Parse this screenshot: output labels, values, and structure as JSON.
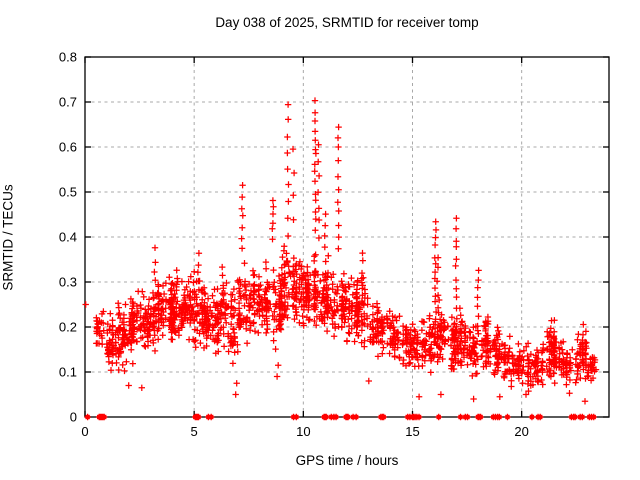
{
  "title": "Day 038 of 2025, SRMTID for receiver tomp",
  "chart_data": {
    "type": "scatter",
    "title": "Day 038 of 2025, SRMTID for receiver tomp",
    "xlabel": "GPS time / hours",
    "ylabel": "SRMTID / TECUs",
    "xlim": [
      0,
      24
    ],
    "ylim": [
      0,
      0.8
    ],
    "x_ticks": [
      0,
      5,
      10,
      15,
      20
    ],
    "y_ticks": [
      0,
      0.1,
      0.2,
      0.3,
      0.4,
      0.5,
      0.6,
      0.7,
      0.8
    ],
    "grid": "dashed",
    "legend": "none",
    "marker": "plus",
    "colors": {
      "marker": "#ff0000",
      "grid": "#a8a8a8",
      "axis": "#000000",
      "text": "#000000",
      "bg": "#ffffff"
    },
    "band_profile_bins": [
      [
        0.5,
        1.0,
        28,
        0.12,
        0.27
      ],
      [
        1.0,
        1.5,
        45,
        0.09,
        0.25
      ],
      [
        1.5,
        2.0,
        50,
        0.08,
        0.28
      ],
      [
        2.0,
        2.5,
        55,
        0.1,
        0.31
      ],
      [
        2.5,
        3.0,
        50,
        0.12,
        0.3
      ],
      [
        3.0,
        3.5,
        52,
        0.13,
        0.34
      ],
      [
        3.5,
        4.0,
        55,
        0.14,
        0.33
      ],
      [
        4.0,
        4.5,
        55,
        0.14,
        0.34
      ],
      [
        4.5,
        5.0,
        50,
        0.15,
        0.33
      ],
      [
        5.0,
        5.5,
        55,
        0.13,
        0.35
      ],
      [
        5.5,
        6.0,
        48,
        0.12,
        0.31
      ],
      [
        6.0,
        6.5,
        52,
        0.13,
        0.34
      ],
      [
        6.5,
        7.0,
        42,
        0.08,
        0.33
      ],
      [
        7.0,
        7.5,
        45,
        0.13,
        0.36
      ],
      [
        7.5,
        8.0,
        48,
        0.15,
        0.37
      ],
      [
        8.0,
        8.5,
        48,
        0.14,
        0.35
      ],
      [
        8.5,
        9.0,
        48,
        0.11,
        0.37
      ],
      [
        9.0,
        9.5,
        52,
        0.16,
        0.4
      ],
      [
        9.5,
        10.0,
        55,
        0.17,
        0.4
      ],
      [
        10.0,
        10.5,
        58,
        0.18,
        0.38
      ],
      [
        10.5,
        11.0,
        52,
        0.16,
        0.38
      ],
      [
        11.0,
        11.5,
        52,
        0.15,
        0.37
      ],
      [
        11.5,
        12.0,
        48,
        0.15,
        0.35
      ],
      [
        12.0,
        12.5,
        48,
        0.14,
        0.34
      ],
      [
        12.5,
        13.0,
        45,
        0.13,
        0.33
      ],
      [
        13.0,
        13.5,
        38,
        0.11,
        0.3
      ],
      [
        13.5,
        14.0,
        34,
        0.1,
        0.28
      ],
      [
        14.0,
        14.5,
        40,
        0.1,
        0.26
      ],
      [
        14.5,
        15.0,
        40,
        0.09,
        0.24
      ],
      [
        15.0,
        15.5,
        40,
        0.08,
        0.23
      ],
      [
        15.5,
        16.0,
        40,
        0.08,
        0.25
      ],
      [
        16.0,
        16.5,
        46,
        0.09,
        0.28
      ],
      [
        16.5,
        17.0,
        40,
        0.07,
        0.26
      ],
      [
        17.0,
        17.5,
        42,
        0.08,
        0.27
      ],
      [
        17.5,
        18.0,
        40,
        0.07,
        0.24
      ],
      [
        18.0,
        18.5,
        42,
        0.08,
        0.25
      ],
      [
        18.5,
        19.0,
        42,
        0.06,
        0.23
      ],
      [
        19.0,
        19.5,
        40,
        0.06,
        0.2
      ],
      [
        19.5,
        20.0,
        34,
        0.05,
        0.18
      ],
      [
        20.0,
        20.5,
        34,
        0.05,
        0.17
      ],
      [
        20.5,
        21.0,
        36,
        0.05,
        0.18
      ],
      [
        21.0,
        21.5,
        42,
        0.06,
        0.22
      ],
      [
        21.5,
        22.0,
        38,
        0.06,
        0.19
      ],
      [
        22.0,
        22.5,
        34,
        0.05,
        0.17
      ],
      [
        22.5,
        23.0,
        42,
        0.07,
        0.2
      ],
      [
        23.0,
        23.4,
        26,
        0.06,
        0.16
      ]
    ],
    "spike_columns": [
      [
        3.2,
        4,
        0.3,
        0.37
      ],
      [
        4.2,
        4,
        0.28,
        0.33
      ],
      [
        5.2,
        5,
        0.28,
        0.36
      ],
      [
        6.3,
        4,
        0.27,
        0.33
      ],
      [
        7.2,
        7,
        0.38,
        0.51
      ],
      [
        8.6,
        6,
        0.4,
        0.48
      ],
      [
        9.3,
        9,
        0.4,
        0.7
      ],
      [
        9.55,
        4,
        0.44,
        0.59
      ],
      [
        10.55,
        15,
        0.42,
        0.7
      ],
      [
        10.7,
        7,
        0.4,
        0.6
      ],
      [
        11.0,
        5,
        0.35,
        0.45
      ],
      [
        11.6,
        11,
        0.37,
        0.65
      ],
      [
        12.7,
        4,
        0.3,
        0.37
      ],
      [
        16.05,
        14,
        0.2,
        0.43
      ],
      [
        16.15,
        7,
        0.18,
        0.36
      ],
      [
        17.0,
        12,
        0.2,
        0.44
      ],
      [
        18.0,
        8,
        0.18,
        0.33
      ],
      [
        21.35,
        6,
        0.12,
        0.22
      ],
      [
        22.8,
        8,
        0.1,
        0.2
      ]
    ],
    "outlier_points": [
      [
        0.03,
        0.25
      ],
      [
        2.0,
        0.07
      ],
      [
        2.6,
        0.065
      ],
      [
        6.9,
        0.05
      ],
      [
        6.95,
        0.075
      ],
      [
        8.8,
        0.09
      ],
      [
        8.85,
        0.115
      ],
      [
        13.0,
        0.08
      ],
      [
        15.3,
        0.045
      ],
      [
        16.3,
        0.05
      ],
      [
        17.8,
        0.04
      ],
      [
        19.0,
        0.045
      ],
      [
        20.2,
        0.05
      ],
      [
        21.5,
        0.215
      ],
      [
        22.9,
        0.035
      ]
    ],
    "zero_rug_x": [
      0.12,
      0.65,
      0.7,
      0.75,
      0.78,
      0.82,
      0.88,
      5.05,
      5.1,
      5.15,
      5.2,
      5.65,
      5.78,
      9.55,
      9.68,
      10.95,
      11.0,
      11.05,
      11.28,
      11.4,
      11.5,
      11.95,
      12.0,
      12.05,
      12.28,
      12.42,
      13.55,
      13.62,
      13.68,
      14.78,
      14.88,
      15.0,
      15.05,
      15.12,
      15.2,
      15.3,
      16.2,
      17.2,
      17.42,
      17.52,
      18.0,
      18.05,
      18.12,
      18.7,
      18.8,
      18.9,
      18.98,
      19.35,
      20.47,
      20.75,
      20.85,
      22.28,
      22.38,
      22.45,
      22.68,
      22.78,
      23.1,
      23.2,
      23.3
    ]
  }
}
